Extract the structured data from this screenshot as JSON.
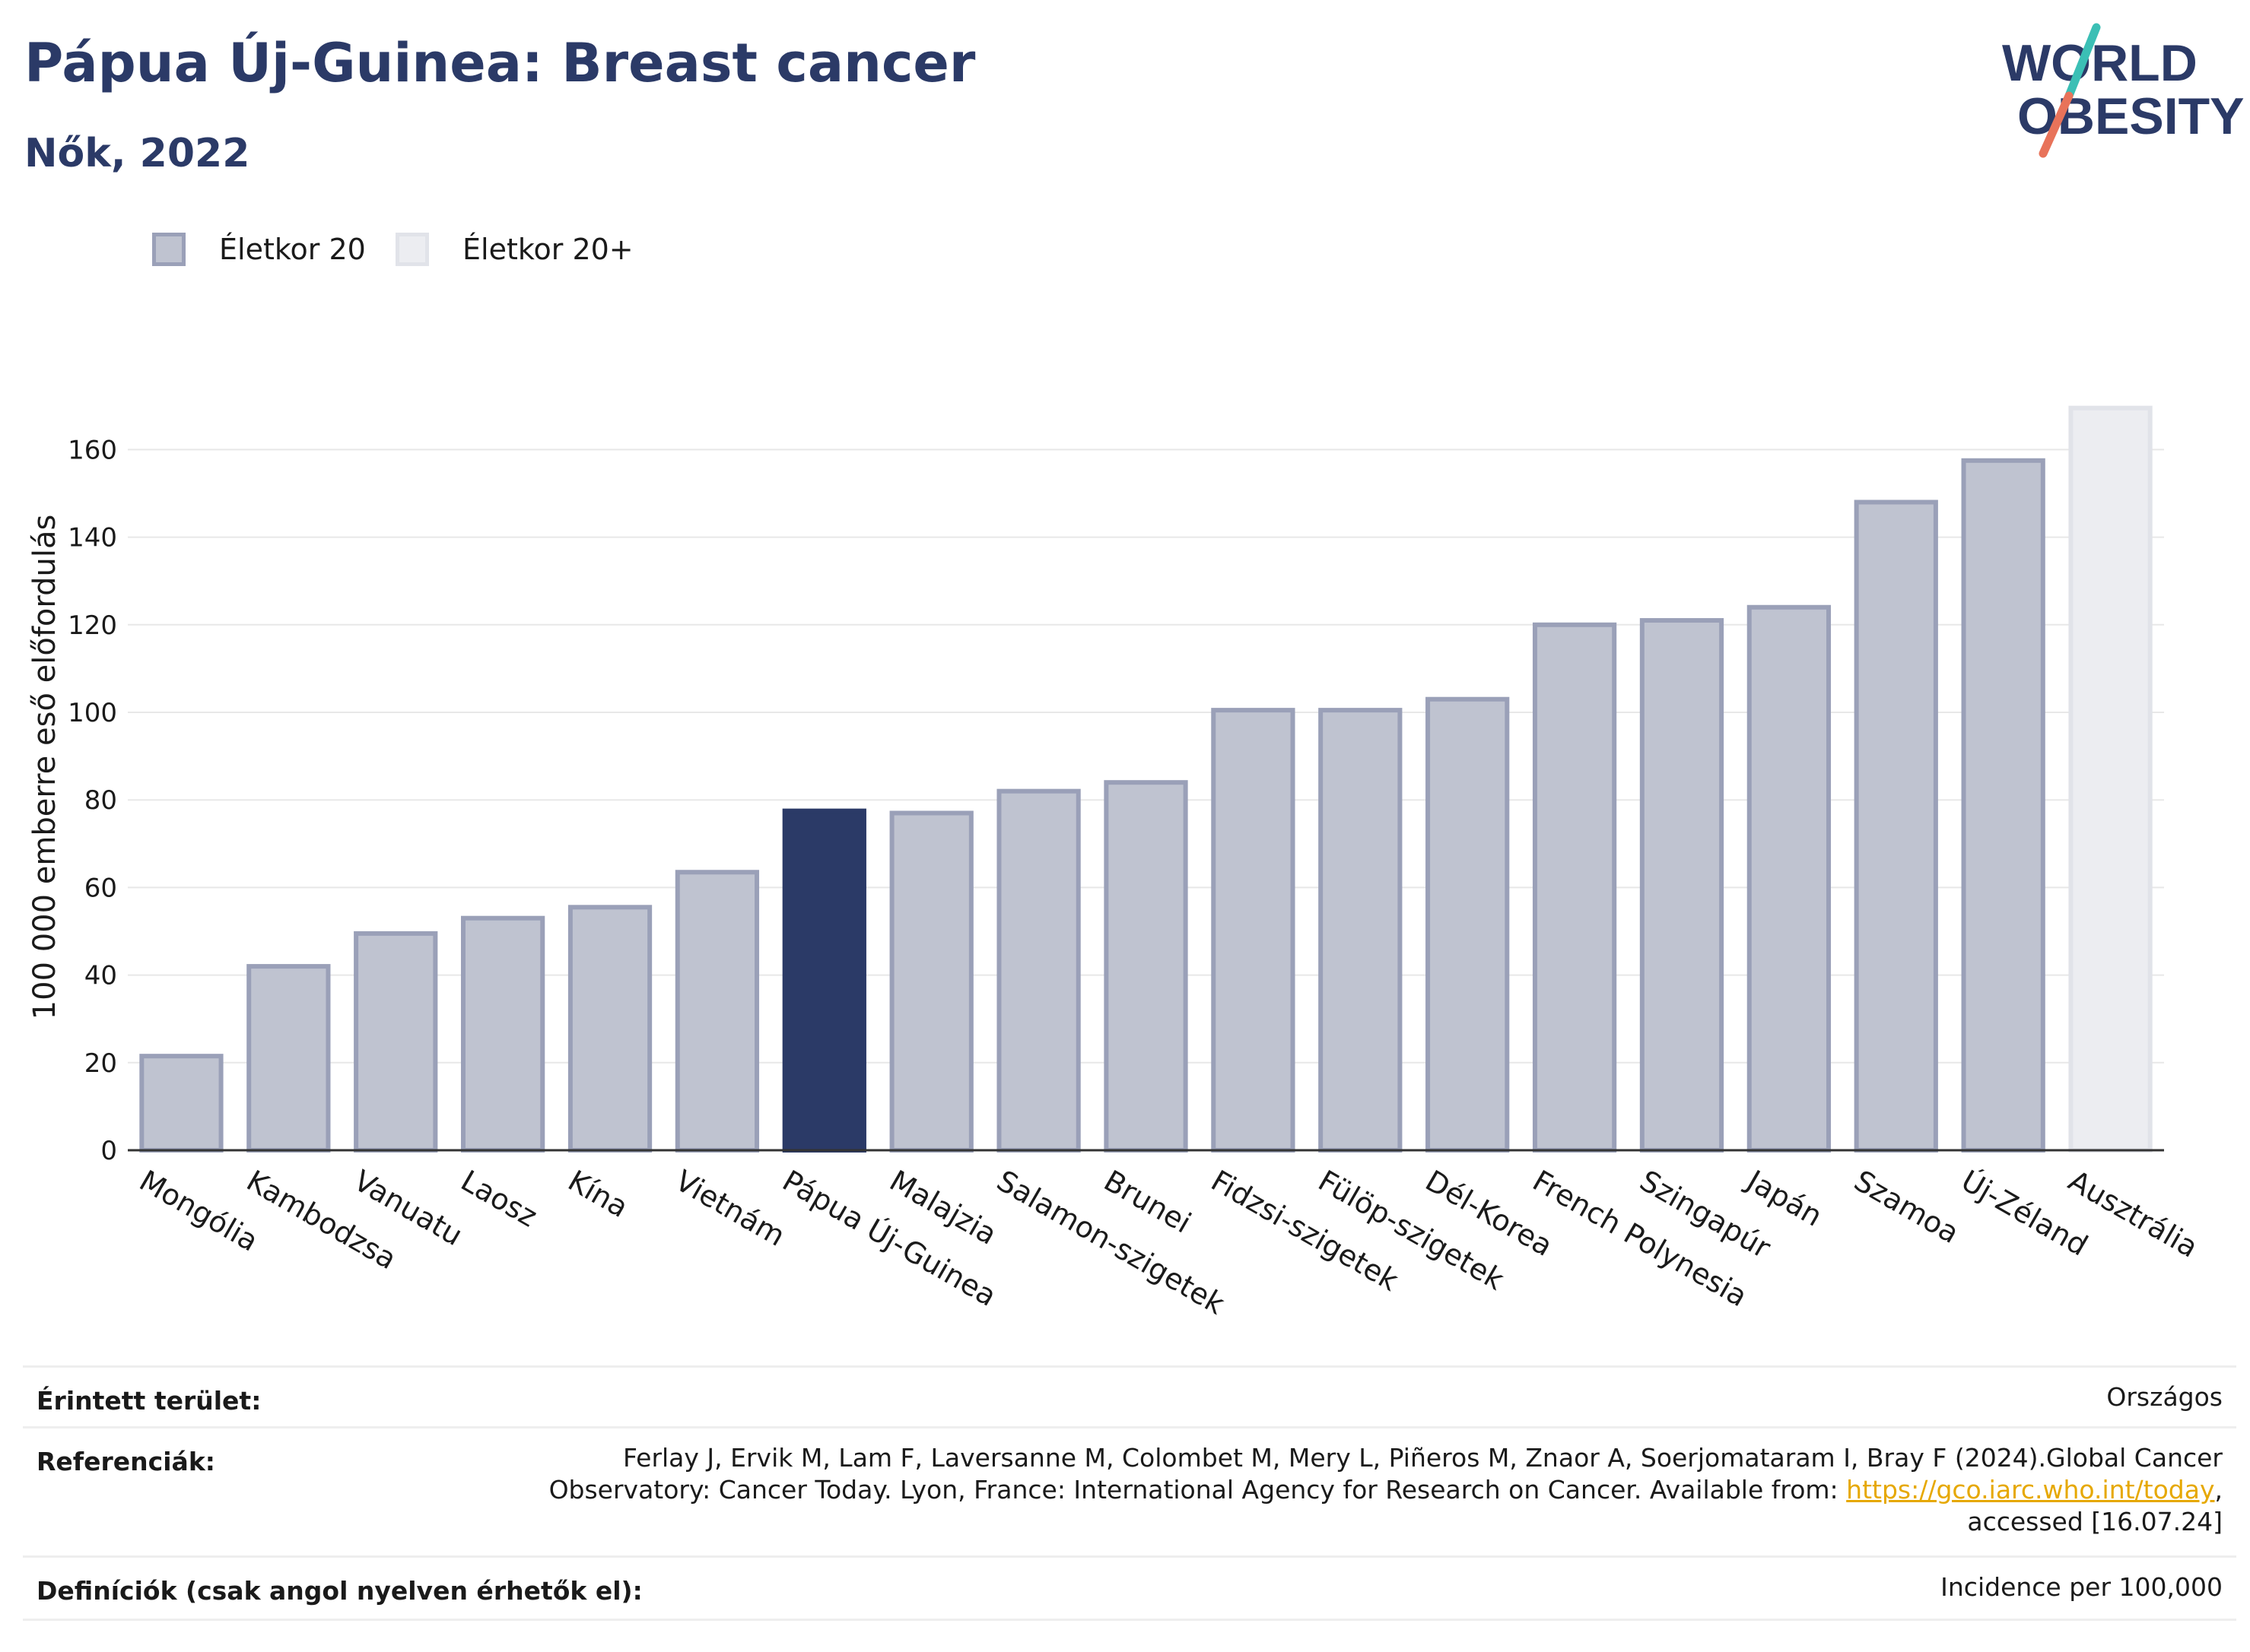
{
  "header": {
    "title": "Pápua Új-Guinea: Breast cancer",
    "subtitle": "Nők, 2022"
  },
  "logo": {
    "line1": "WORLD",
    "line2": "OBESITY",
    "brand_color": "#2b3a67",
    "slash_colors": [
      "#3bbfb5",
      "#e8735a"
    ]
  },
  "legend": [
    {
      "label": "Életkor 20",
      "color": "#bfc3d0",
      "border": "#9aa0b8"
    },
    {
      "label": "Életkor 20+",
      "color": "#ecedf1",
      "border": "#e1e3e9"
    }
  ],
  "chart_data": {
    "type": "bar",
    "title": "",
    "xlabel": "",
    "ylabel": "100 000 emberre eső előfordulás",
    "ylim": [
      0,
      175
    ],
    "yticks": [
      0,
      20,
      40,
      60,
      80,
      100,
      120,
      140,
      160
    ],
    "grid": true,
    "categories": [
      "Mongólia",
      "Kambodzsa",
      "Vanuatu",
      "Laosz",
      "Kína",
      "Vietnám",
      "Pápua Új-Guinea",
      "Malajzia",
      "Salamon-szigetek",
      "Brunei",
      "Fidzsi-szigetek",
      "Fülöp-szigetek",
      "Dél-Korea",
      "French Polynesia",
      "Szingapúr",
      "Japán",
      "Szamoa",
      "Új-Zéland",
      "Ausztrália"
    ],
    "values": [
      21.5,
      42,
      49.5,
      53,
      55.5,
      63.5,
      77.5,
      77,
      82,
      84,
      100.5,
      100.5,
      103,
      120,
      121,
      124,
      148,
      157.5,
      169.5
    ],
    "groups": [
      "Életkor 20",
      "Életkor 20",
      "Életkor 20",
      "Életkor 20",
      "Életkor 20",
      "Életkor 20",
      "Életkor 20",
      "Életkor 20",
      "Életkor 20",
      "Életkor 20",
      "Életkor 20",
      "Életkor 20",
      "Életkor 20",
      "Életkor 20",
      "Életkor 20",
      "Életkor 20",
      "Életkor 20",
      "Életkor 20",
      "Életkor 20+"
    ],
    "highlight": "Pápua Új-Guinea",
    "colors": {
      "default_fill": "#bfc3d0",
      "default_border": "#9aa0b8",
      "highlight_fill": "#2b3a67",
      "plus_fill": "#ecedf1",
      "plus_border": "#e1e3e9"
    }
  },
  "footer": {
    "area_label": "Érintett terület:",
    "area_value": "Országos",
    "ref_label": "Referenciák:",
    "ref_line1": "Ferlay J, Ervik M, Lam F, Laversanne M, Colombet M, Mery L, Piñeros M, Znaor A, Soerjomataram I, Bray F (2024).Global Cancer",
    "ref_line2_pre": "Observatory: Cancer Today. Lyon, France: International Agency for Research on Cancer. Available from: ",
    "ref_link": "https://gco.iarc.who.int/today",
    "ref_line2_post": ",",
    "ref_line3": "accessed [16.07.24]",
    "def_label": "Definíciók (csak angol nyelven érhetők el):",
    "def_value": "Incidence per 100,000"
  }
}
